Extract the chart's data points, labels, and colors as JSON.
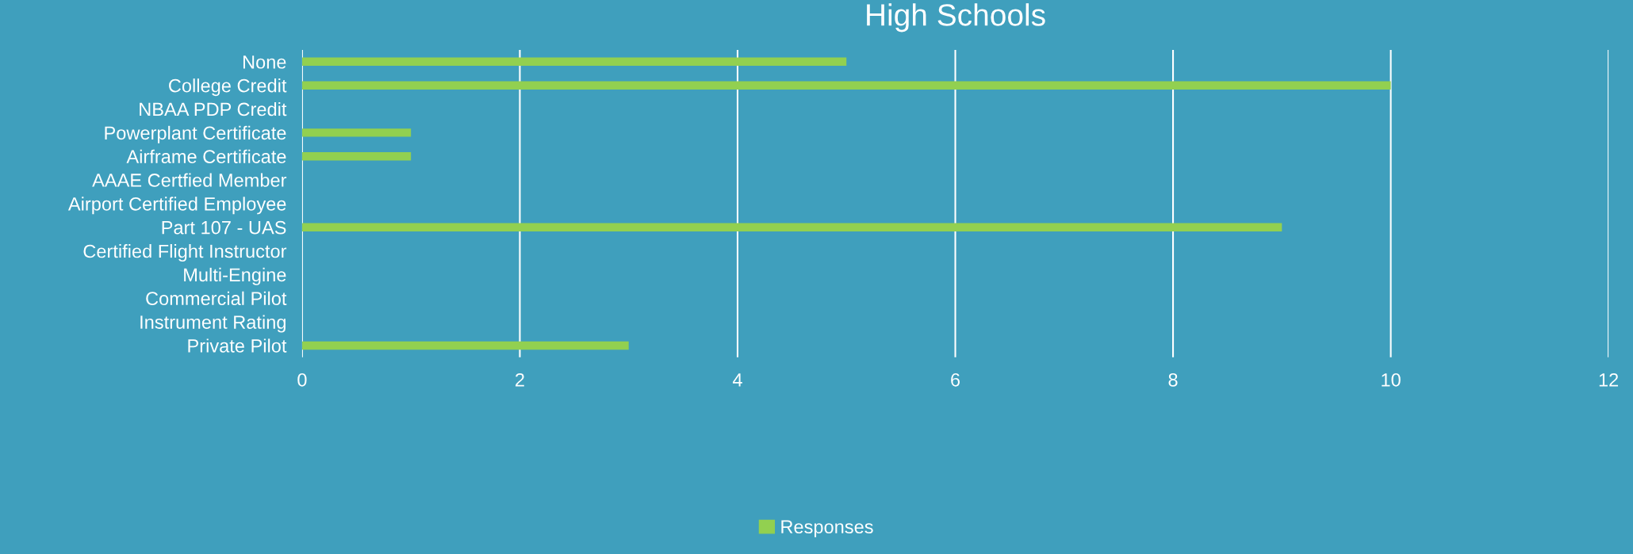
{
  "chart_data": {
    "type": "bar",
    "orientation": "horizontal",
    "title": "High Schools",
    "categories": [
      "None",
      "College Credit",
      "NBAA PDP Credit",
      "Powerplant Certificate",
      "Airframe Certificate",
      "AAAE Certfied Member",
      "Airport Certified Employee",
      "Part 107 - UAS",
      "Certified Flight Instructor",
      "Multi-Engine",
      "Commercial Pilot",
      "Instrument Rating",
      "Private Pilot"
    ],
    "series": [
      {
        "name": "Responses",
        "color": "#92d050",
        "values": [
          5,
          10,
          0,
          1,
          1,
          0,
          0,
          9,
          0,
          0,
          0,
          0,
          3
        ]
      }
    ],
    "xlim": [
      0,
      12
    ],
    "xticks": [
      0,
      2,
      4,
      6,
      8,
      10,
      12
    ],
    "grid": "x",
    "legend": "bottom"
  }
}
